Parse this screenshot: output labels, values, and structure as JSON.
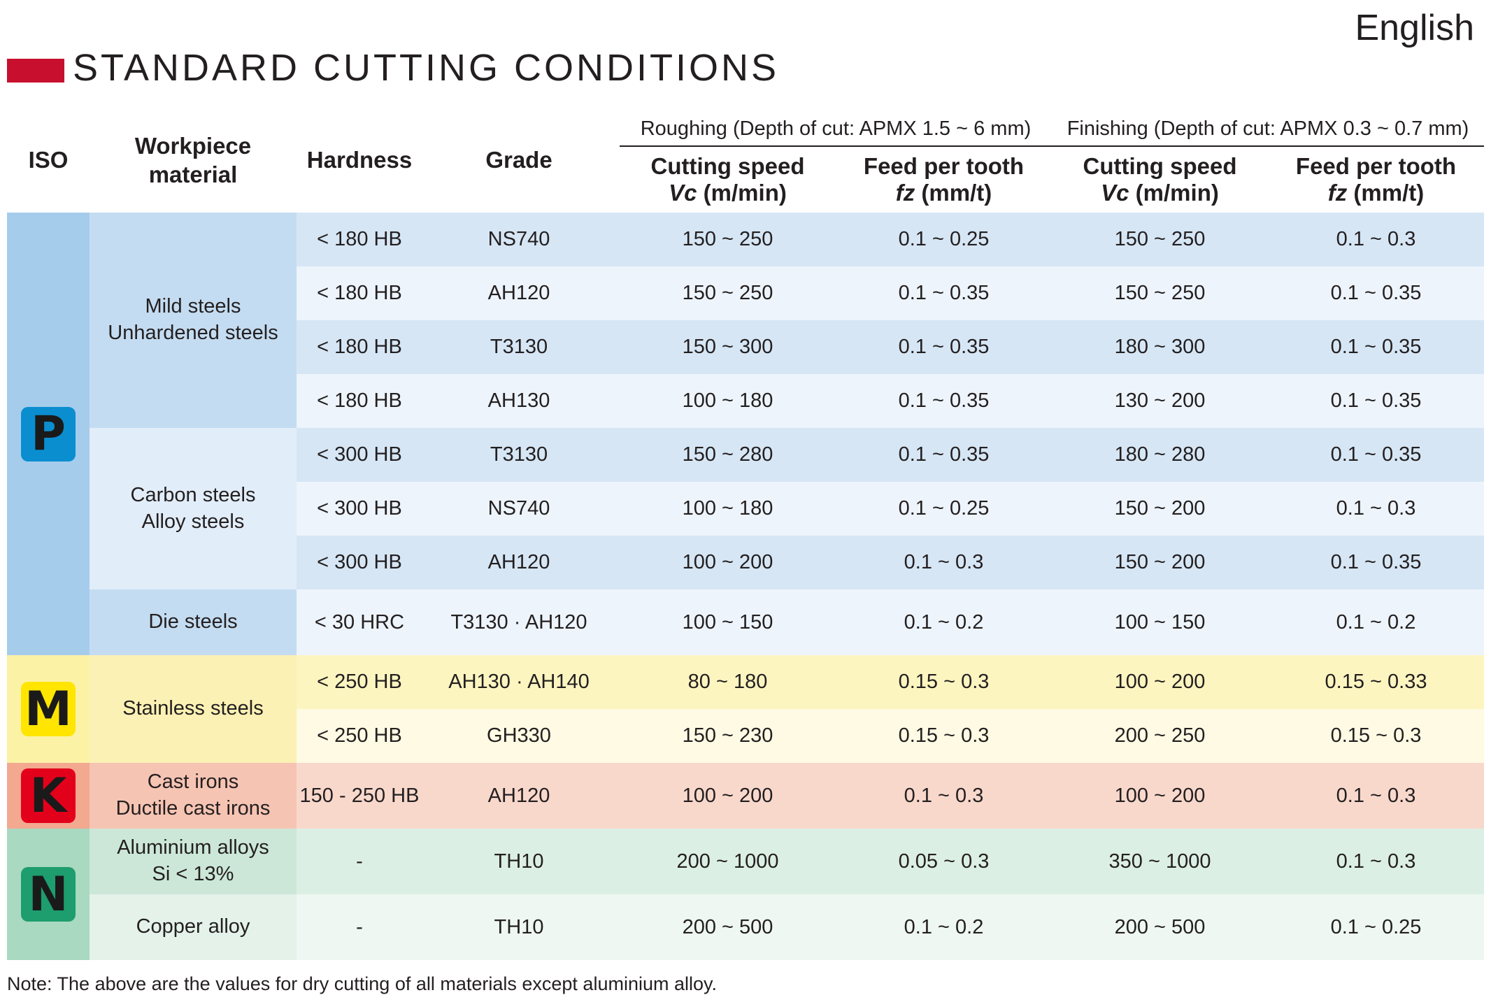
{
  "language": "English",
  "title": "STANDARD CUTTING CONDITIONS",
  "headers": {
    "iso": "ISO",
    "workpiece_line1": "Workpiece",
    "workpiece_line2": "material",
    "hardness": "Hardness",
    "grade": "Grade",
    "roughing": "Roughing (Depth of cut: APMX 1.5 ~ 6 mm)",
    "finishing": "Finishing (Depth of cut: APMX 0.3 ~ 0.7 mm)",
    "speed_line1": "Cutting speed",
    "speed_sym": "Vc",
    "speed_unit": " (m/min)",
    "feed_line1": "Feed per tooth",
    "feed_sym": "fz",
    "feed_unit": " (mm/t)"
  },
  "iso_groups": [
    {
      "letter": "P",
      "badge_color": "#0a8ed0",
      "letter_color": "#1a1a1a",
      "bg": "#a6ccec"
    },
    {
      "letter": "M",
      "badge_color": "#ffe500",
      "letter_color": "#1a1a1a",
      "bg": "#fcf2a6"
    },
    {
      "letter": "K",
      "badge_color": "#e3001b",
      "letter_color": "#1a1a1a",
      "bg": "#f3a890"
    },
    {
      "letter": "N",
      "badge_color": "#1e9d6e",
      "letter_color": "#1a1a1a",
      "bg": "#a9d9c0"
    }
  ],
  "materials": [
    {
      "line1": "Mild steels",
      "line2": "Unhardened steels"
    },
    {
      "line1": "Carbon steels",
      "line2": "Alloy steels"
    },
    {
      "line1": "Die steels",
      "line2": ""
    },
    {
      "line1": "Stainless steels",
      "line2": ""
    },
    {
      "line1": "Cast irons",
      "line2": "Ductile cast irons"
    },
    {
      "line1": "Aluminium alloys",
      "line2": "Si < 13%"
    },
    {
      "line1": "Copper alloy",
      "line2": ""
    }
  ],
  "rows": [
    {
      "hardness": "< 180 HB",
      "grade": "NS740",
      "r_vc": "150 ~ 250",
      "r_fz": "0.1 ~ 0.25",
      "f_vc": "150 ~ 250",
      "f_fz": "0.1 ~ 0.3"
    },
    {
      "hardness": "< 180 HB",
      "grade": "AH120",
      "r_vc": "150 ~ 250",
      "r_fz": "0.1 ~ 0.35",
      "f_vc": "150 ~ 250",
      "f_fz": "0.1 ~ 0.35"
    },
    {
      "hardness": "< 180 HB",
      "grade": "T3130",
      "r_vc": "150 ~ 300",
      "r_fz": "0.1 ~ 0.35",
      "f_vc": "180 ~ 300",
      "f_fz": "0.1 ~ 0.35"
    },
    {
      "hardness": "< 180 HB",
      "grade": "AH130",
      "r_vc": "100 ~ 180",
      "r_fz": "0.1 ~ 0.35",
      "f_vc": "130 ~ 200",
      "f_fz": "0.1 ~ 0.35"
    },
    {
      "hardness": "< 300 HB",
      "grade": "T3130",
      "r_vc": "150 ~ 280",
      "r_fz": "0.1 ~ 0.35",
      "f_vc": "180 ~ 280",
      "f_fz": "0.1 ~ 0.35"
    },
    {
      "hardness": "< 300 HB",
      "grade": "NS740",
      "r_vc": "100 ~ 180",
      "r_fz": "0.1 ~ 0.25",
      "f_vc": "150 ~ 200",
      "f_fz": "0.1 ~ 0.3"
    },
    {
      "hardness": "< 300 HB",
      "grade": "AH120",
      "r_vc": "100 ~ 200",
      "r_fz": "0.1 ~ 0.3",
      "f_vc": "150 ~ 200",
      "f_fz": "0.1 ~ 0.35"
    },
    {
      "hardness": "< 30 HRC",
      "grade": "T3130 · AH120",
      "r_vc": "100 ~ 150",
      "r_fz": "0.1 ~ 0.2",
      "f_vc": "100 ~ 150",
      "f_fz": "0.1 ~ 0.2"
    },
    {
      "hardness": "< 250 HB",
      "grade": "AH130 · AH140",
      "r_vc": "80 ~ 180",
      "r_fz": "0.15 ~ 0.3",
      "f_vc": "100 ~ 200",
      "f_fz": "0.15 ~ 0.33"
    },
    {
      "hardness": "< 250 HB",
      "grade": "GH330",
      "r_vc": "150 ~ 230",
      "r_fz": "0.15 ~ 0.3",
      "f_vc": "200 ~ 250",
      "f_fz": "0.15 ~ 0.3"
    },
    {
      "hardness": "150 - 250 HB",
      "grade": "AH120",
      "r_vc": "100 ~ 200",
      "r_fz": "0.1 ~ 0.3",
      "f_vc": "100 ~ 200",
      "f_fz": "0.1 ~ 0.3"
    },
    {
      "hardness": "-",
      "grade": "TH10",
      "r_vc": "200 ~ 1000",
      "r_fz": "0.05 ~ 0.3",
      "f_vc": "350 ~ 1000",
      "f_fz": "0.1 ~ 0.3"
    },
    {
      "hardness": "-",
      "grade": "TH10",
      "r_vc": "200 ~ 500",
      "r_fz": "0.1 ~ 0.2",
      "f_vc": "200 ~ 500",
      "f_fz": "0.1 ~ 0.25"
    }
  ],
  "row_colors": {
    "P_dark": "#d6e6f5",
    "P_light": "#edf4fb",
    "P_mat_dark": "#c4dcf1",
    "P_mat_light": "#e1edf9",
    "M_dark": "#fdf5c0",
    "M_light": "#fefae3",
    "M_mat": "#fcf1b4",
    "K": "#f9d8cc",
    "K_mat": "#f6c4b3",
    "N_dark": "#dcefe4",
    "N_light": "#eef7f2",
    "N_mat_dark": "#cce7d8",
    "N_mat_light": "#e4f2ea"
  },
  "note": "Note: The above are the values for dry cutting of all materials except aluminium alloy."
}
